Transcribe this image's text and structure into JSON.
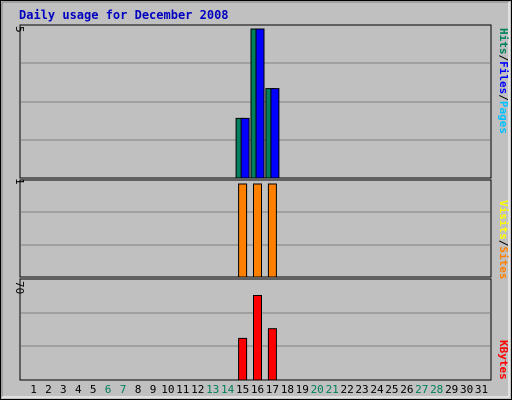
{
  "colors": {
    "background": "#c0c0c0",
    "plot_background": "#c0c0c0",
    "grid": "#808080",
    "title": "#0000c0",
    "hits": "#00805c",
    "files": "#0000ff",
    "pages": "#00c0ff",
    "visits": "#ffff00",
    "sites": "#ff8000",
    "kbytes": "#ff0000",
    "weekday_label": "#000000",
    "weekend_label": "#00805c"
  },
  "chart_data": [
    {
      "type": "bar",
      "title": "Daily usage for December 2008",
      "y_max_label": "5",
      "ylim": [
        0,
        5
      ],
      "legend": [
        {
          "name": "Pages",
          "color": "#00c0ff"
        },
        {
          "name": "Files",
          "color": "#0000ff"
        },
        {
          "name": "Hits",
          "color": "#00805c"
        }
      ],
      "legend_separator": "/",
      "x": [
        1,
        2,
        3,
        4,
        5,
        6,
        7,
        8,
        9,
        10,
        11,
        12,
        13,
        14,
        15,
        16,
        17,
        18,
        19,
        20,
        21,
        22,
        23,
        24,
        25,
        26,
        27,
        28,
        29,
        30,
        31
      ],
      "weekend_days": [
        6,
        7,
        13,
        14,
        20,
        21,
        27,
        28
      ],
      "series": [
        {
          "name": "Hits",
          "values": [
            0,
            0,
            0,
            0,
            0,
            0,
            0,
            0,
            0,
            0,
            0,
            0,
            0,
            0,
            2,
            5,
            3,
            0,
            0,
            0,
            0,
            0,
            0,
            0,
            0,
            0,
            0,
            0,
            0,
            0,
            0
          ]
        },
        {
          "name": "Files",
          "values": [
            0,
            0,
            0,
            0,
            0,
            0,
            0,
            0,
            0,
            0,
            0,
            0,
            0,
            0,
            2,
            5,
            3,
            0,
            0,
            0,
            0,
            0,
            0,
            0,
            0,
            0,
            0,
            0,
            0,
            0,
            0
          ]
        }
      ]
    },
    {
      "type": "bar",
      "y_max_label": "1",
      "ylim": [
        0,
        1
      ],
      "legend": [
        {
          "name": "Sites",
          "color": "#ff8000"
        },
        {
          "name": "Visits",
          "color": "#ffff00"
        }
      ],
      "legend_separator": "/",
      "series": [
        {
          "name": "Sites",
          "values": [
            0,
            0,
            0,
            0,
            0,
            0,
            0,
            0,
            0,
            0,
            0,
            0,
            0,
            0,
            1,
            1,
            1,
            0,
            0,
            0,
            0,
            0,
            0,
            0,
            0,
            0,
            0,
            0,
            0,
            0,
            0
          ]
        }
      ]
    },
    {
      "type": "bar",
      "y_max_label": "70",
      "ylim": [
        0,
        70
      ],
      "legend": [
        {
          "name": "KBytes",
          "color": "#ff0000"
        }
      ],
      "series": [
        {
          "name": "KBytes",
          "values": [
            0,
            0,
            0,
            0,
            0,
            0,
            0,
            0,
            0,
            0,
            0,
            0,
            0,
            0,
            30,
            61,
            37,
            0,
            0,
            0,
            0,
            0,
            0,
            0,
            0,
            0,
            0,
            0,
            0,
            0,
            0
          ]
        }
      ]
    }
  ]
}
